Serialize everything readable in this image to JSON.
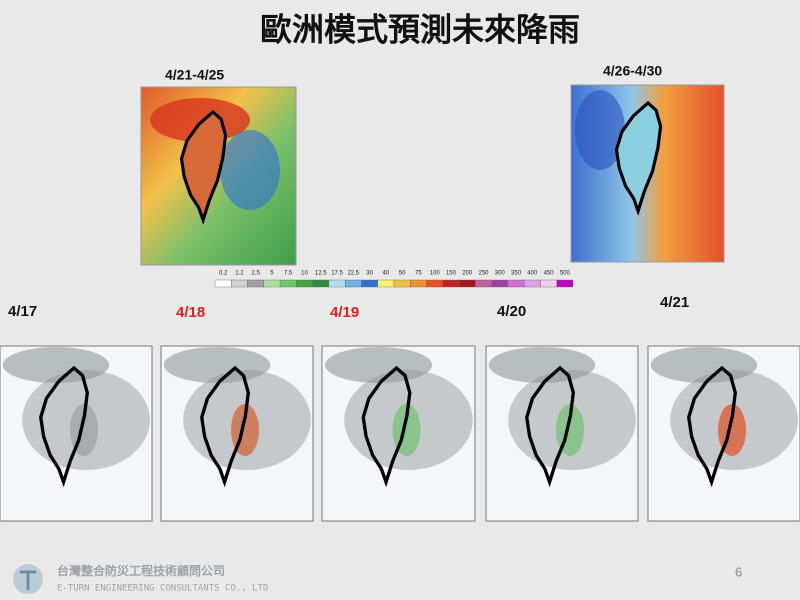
{
  "title": "歐洲模式預測未來降雨",
  "weekly_maps": [
    {
      "label": "4/21-4/25"
    },
    {
      "label": "4/26-4/30"
    }
  ],
  "colorbar": {
    "labels": [
      "0.2",
      "1.2",
      "2.5",
      "5",
      "7.5",
      "10",
      "12.5",
      "17.5",
      "22.5",
      "30",
      "40",
      "50",
      "75",
      "100",
      "150",
      "200",
      "250",
      "300",
      "350",
      "400",
      "450",
      "500"
    ]
  },
  "daily_maps": [
    {
      "label": "4/17"
    },
    {
      "label": "4/18"
    },
    {
      "label": "4/19"
    },
    {
      "label": "4/20"
    },
    {
      "label": "4/21"
    }
  ],
  "footer": {
    "company": "台灣整合防災工程技術顧問公司",
    "company_en": "E-TURN ENGINEERING CONSULTANTS CO., LTD",
    "page": "6"
  }
}
